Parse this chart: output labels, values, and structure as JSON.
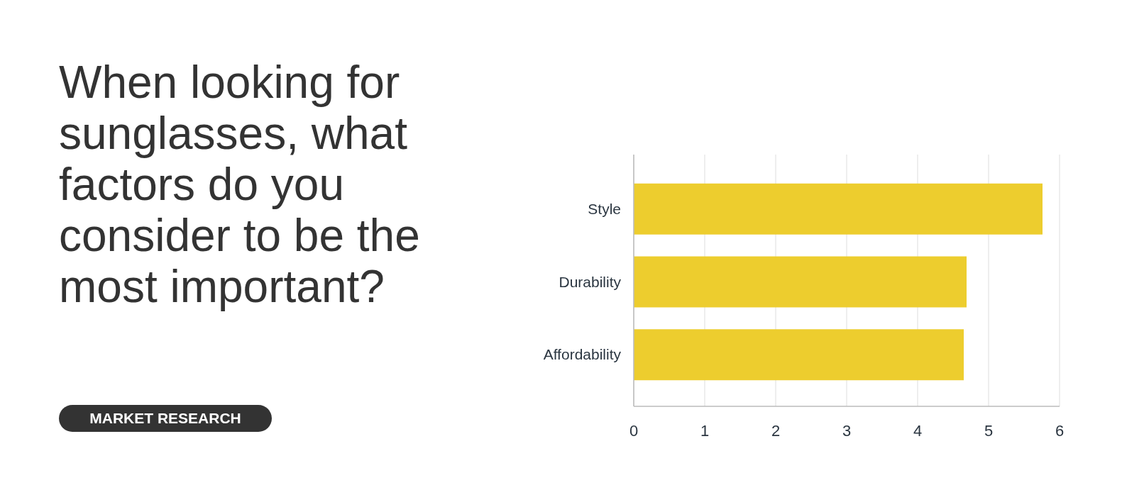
{
  "chart_data": {
    "type": "bar",
    "orientation": "horizontal",
    "title": "When looking for sunglasses, what factors do you consider to be the most important?",
    "subtitle": "MARKET RESEARCH",
    "categories": [
      "Style",
      "Durability",
      "Affordability"
    ],
    "values": [
      5.76,
      4.69,
      4.65
    ],
    "color": "#edcd2e",
    "xlim": [
      0,
      6
    ],
    "xticks": [
      0,
      1,
      2,
      3,
      4,
      5,
      6
    ],
    "grid": "x"
  }
}
